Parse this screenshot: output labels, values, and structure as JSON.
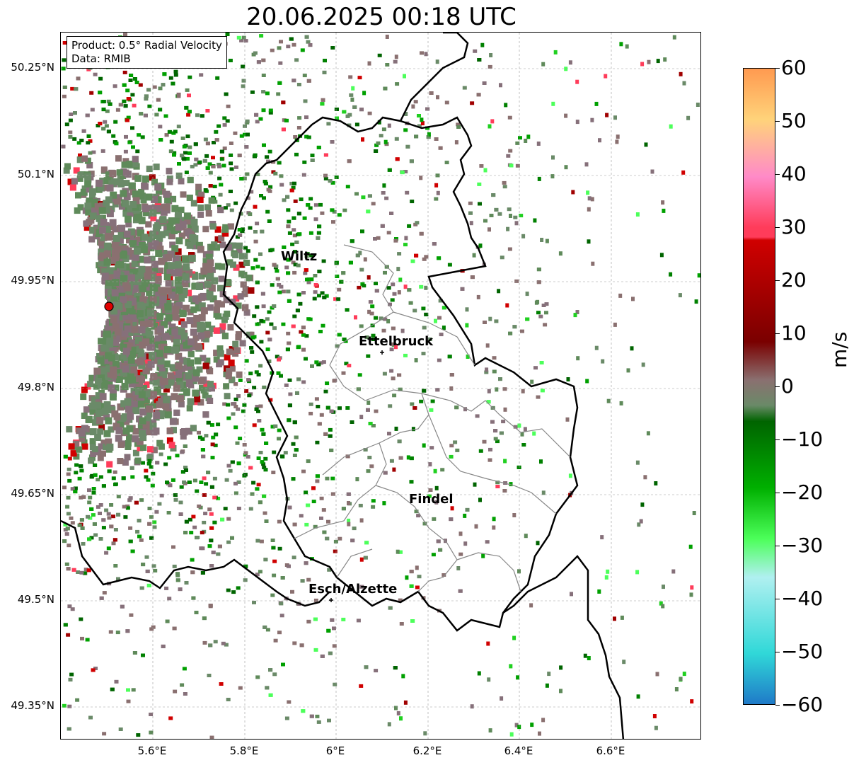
{
  "title": "20.06.2025 00:18 UTC",
  "info": {
    "product": "Product: 0.5° Radial Velocity",
    "data_source": "Data: RMIB"
  },
  "axes": {
    "lat_ticks": [
      "50.25°N",
      "50.1°N",
      "49.95°N",
      "49.8°N",
      "49.65°N",
      "49.5°N",
      "49.35°N"
    ],
    "lon_ticks": [
      "5.6°E",
      "5.8°E",
      "6°E",
      "6.2°E",
      "6.4°E",
      "6.6°E"
    ]
  },
  "cities": [
    {
      "name": "Wiltz"
    },
    {
      "name": "Ettelbruck"
    },
    {
      "name": "Findel"
    },
    {
      "name": "Esch/Alzette"
    }
  ],
  "colorbar": {
    "unit": "m/s",
    "ticks": [
      "60",
      "50",
      "40",
      "30",
      "20",
      "10",
      "0",
      "−10",
      "−20",
      "−30",
      "−40",
      "−50",
      "−60"
    ],
    "colors": {
      "c60": "#ff9a50",
      "c50": "#ffd37a",
      "c40": "#ff8ac8",
      "c30": "#ff3c5a",
      "c20": "#d00000",
      "c10": "#7a0000",
      "c0": "#8a7070",
      "cm5": "#6a8a68",
      "cm10": "#006400",
      "cm20": "#00b000",
      "cm30": "#4cff5a",
      "cm40": "#b0f0f0",
      "cm50": "#30d8d8",
      "cm60": "#1f7ac8"
    }
  },
  "radar_site": {
    "color": "#e00000"
  }
}
